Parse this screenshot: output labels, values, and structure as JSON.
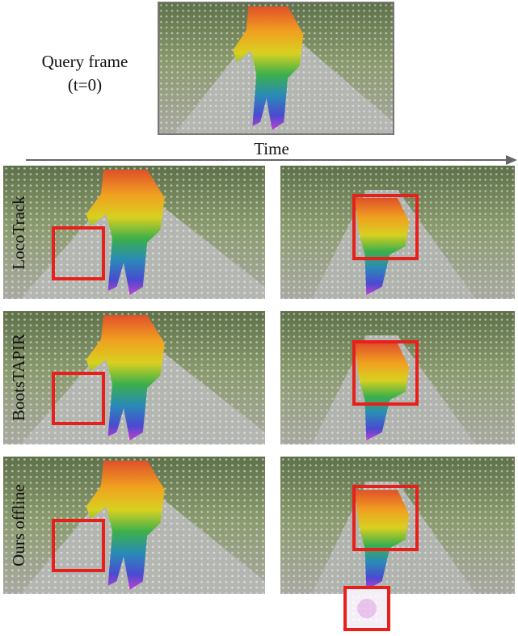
{
  "query": {
    "label": "Query frame",
    "time": "(t=0)"
  },
  "axis_label": "Time",
  "rows": [
    {
      "method": "LocoTrack"
    },
    {
      "method": "BootsTAPIR"
    },
    {
      "method": "Ours offline"
    }
  ]
}
